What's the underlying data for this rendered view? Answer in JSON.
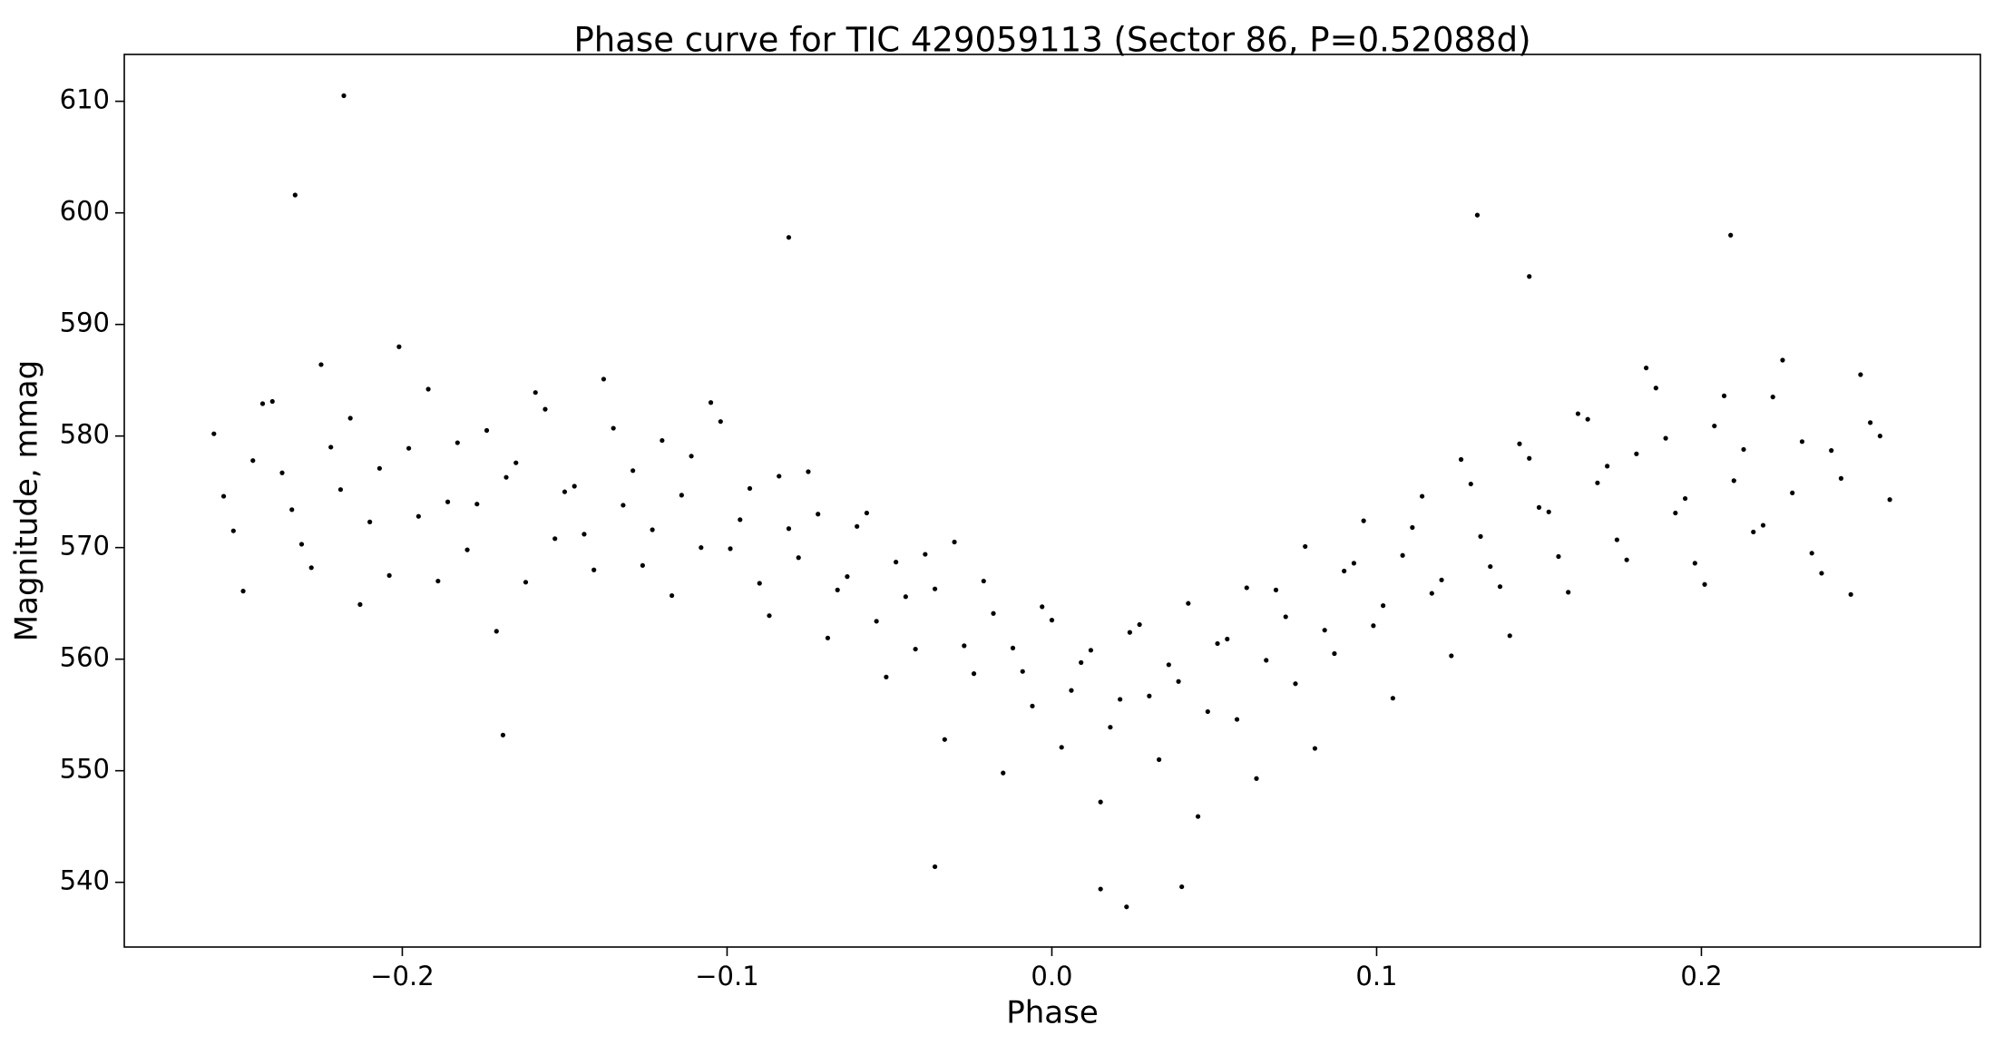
{
  "chart_data": {
    "type": "scatter",
    "title": "Phase curve for TIC 429059113 (Sector 86, P=0.52088d)",
    "x_label": "Phase",
    "y_label": "Magnitude, mmag",
    "color": "#000000",
    "xlim": [
      -0.2856,
      0.2859
    ],
    "ylim": [
      534.2,
      614.2
    ],
    "xticks": [
      {
        "value": -0.2,
        "label": "−0.2"
      },
      {
        "value": -0.1,
        "label": "−0.1"
      },
      {
        "value": 0.0,
        "label": "0.0"
      },
      0.1,
      0.2
    ],
    "yticks": [
      540,
      550,
      560,
      570,
      580,
      590,
      600,
      610
    ],
    "x": [
      -0.258,
      -0.252,
      -0.246,
      -0.24,
      -0.234,
      -0.228,
      -0.222,
      -0.216,
      -0.21,
      -0.204,
      -0.198,
      -0.192,
      -0.186,
      -0.18,
      -0.174,
      -0.168,
      -0.162,
      -0.156,
      -0.15,
      -0.144,
      -0.138,
      -0.132,
      -0.126,
      -0.12,
      -0.114,
      -0.108,
      -0.102,
      -0.096,
      -0.09,
      -0.084,
      -0.078,
      -0.072,
      -0.066,
      -0.06,
      -0.054,
      -0.048,
      -0.042,
      -0.036,
      -0.03,
      -0.024,
      -0.018,
      -0.012,
      -0.006,
      0,
      0.006,
      0.012,
      0.018,
      0.024,
      0.03,
      0.036,
      0.042,
      0.048,
      0.054,
      0.06,
      0.066,
      0.072,
      0.078,
      0.084,
      0.09,
      0.096,
      0.102,
      0.108,
      0.114,
      0.12,
      0.126,
      0.132,
      0.138,
      0.144,
      0.15,
      0.156,
      0.162,
      0.168,
      0.174,
      0.18,
      0.186,
      0.192,
      0.198,
      0.204,
      0.21,
      0.216,
      0.222,
      0.228,
      0.234,
      0.24,
      0.246,
      0.252,
      0.258,
      -0.255,
      -0.249,
      -0.243,
      -0.237,
      -0.231,
      -0.225,
      -0.219,
      -0.213,
      -0.207,
      -0.201,
      -0.195,
      -0.189,
      -0.183,
      -0.177,
      -0.171,
      -0.165,
      -0.159,
      -0.153,
      -0.147,
      -0.141,
      -0.135,
      -0.129,
      -0.123,
      -0.117,
      -0.111,
      -0.105,
      -0.099,
      -0.093,
      -0.087,
      -0.081,
      -0.075,
      -0.069,
      -0.063,
      -0.057,
      -0.051,
      -0.045,
      -0.039,
      -0.033,
      -0.027,
      -0.021,
      -0.015,
      -0.009,
      -0.003,
      0.003,
      0.009,
      0.015,
      0.021,
      0.027,
      0.033,
      0.039,
      0.045,
      0.051,
      0.057,
      0.063,
      0.069,
      0.075,
      0.081,
      0.087,
      0.093,
      0.099,
      0.105,
      0.111,
      0.117,
      0.123,
      0.129,
      0.135,
      0.141,
      0.147,
      0.153,
      0.159,
      0.165,
      0.171,
      0.177,
      0.183,
      0.189,
      0.195,
      0.201,
      0.207,
      0.213,
      0.219,
      0.225,
      0.231,
      0.237,
      0.243,
      0.249,
      0.255,
      -0.218,
      -0.233,
      -0.081,
      0.131,
      0.209,
      0.023,
      0.04,
      -0.169,
      0.147,
      -0.036,
      0.015
    ],
    "values": [
      580.2,
      571.5,
      577.8,
      583.1,
      573.4,
      568.2,
      579.0,
      581.6,
      572.3,
      567.5,
      578.9,
      584.2,
      574.1,
      569.8,
      580.5,
      576.3,
      566.9,
      582.4,
      575.0,
      571.2,
      585.1,
      573.8,
      568.4,
      579.6,
      574.7,
      570.0,
      581.3,
      572.5,
      566.8,
      576.4,
      569.1,
      573.0,
      566.2,
      571.9,
      563.4,
      568.7,
      560.9,
      566.3,
      570.5,
      558.7,
      564.1,
      561.0,
      555.8,
      563.5,
      557.2,
      560.8,
      553.9,
      562.4,
      556.7,
      559.5,
      565.0,
      555.3,
      561.8,
      566.4,
      559.9,
      563.8,
      570.1,
      562.6,
      567.9,
      572.4,
      564.8,
      569.3,
      574.6,
      567.1,
      577.9,
      571.0,
      566.5,
      579.3,
      573.6,
      569.2,
      582.0,
      575.8,
      570.7,
      578.4,
      584.3,
      573.1,
      568.6,
      580.9,
      576.0,
      571.4,
      583.5,
      574.9,
      569.5,
      578.7,
      565.8,
      581.2,
      574.3,
      574.6,
      566.1,
      582.9,
      576.7,
      570.3,
      586.4,
      575.2,
      564.9,
      577.1,
      588.0,
      572.8,
      567.0,
      579.4,
      573.9,
      562.5,
      577.6,
      583.9,
      570.8,
      575.5,
      568.0,
      580.7,
      576.9,
      571.6,
      565.7,
      578.2,
      583.0,
      569.9,
      575.3,
      563.9,
      571.7,
      576.8,
      561.9,
      567.4,
      573.1,
      558.4,
      565.6,
      569.4,
      552.8,
      561.2,
      567.0,
      549.8,
      558.9,
      564.7,
      552.1,
      559.7,
      547.2,
      556.4,
      563.1,
      551.0,
      558.0,
      545.9,
      561.4,
      554.6,
      549.3,
      566.2,
      557.8,
      552.0,
      560.5,
      568.6,
      563.0,
      556.5,
      571.8,
      565.9,
      560.3,
      575.7,
      568.3,
      562.1,
      578.0,
      573.2,
      566.0,
      581.5,
      577.3,
      568.9,
      586.1,
      579.8,
      574.4,
      566.7,
      583.6,
      578.8,
      572.0,
      586.8,
      579.5,
      567.7,
      576.2,
      585.5,
      580.0,
      610.5,
      601.6,
      597.8,
      599.8,
      598.0,
      537.8,
      539.6,
      553.2,
      594.3,
      541.4,
      539.4
    ]
  }
}
